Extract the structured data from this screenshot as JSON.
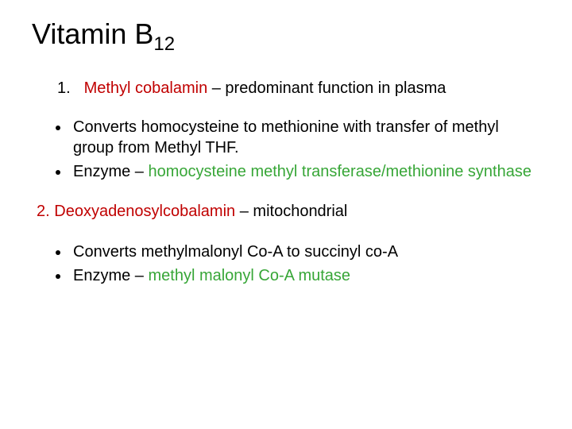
{
  "colors": {
    "red": "#c00000",
    "green": "#37a637",
    "black": "#000000",
    "background": "#ffffff"
  },
  "typography": {
    "title_fontsize": 36,
    "body_fontsize": 20,
    "font_family": "Comic Sans MS"
  },
  "title": {
    "main": "Vitamin B",
    "sub": "12"
  },
  "item1": {
    "marker": "1.",
    "name": "Methyl cobalamin",
    "desc": " – predominant function in plasma"
  },
  "bullets1": {
    "b1": "Converts homocysteine to methionine with transfer of methyl group from Methyl THF.",
    "b2_prefix": "Enzyme – ",
    "b2_green": "homocysteine methyl transferase/methionine synthase"
  },
  "item2": {
    "marker": "2.  ",
    "name": "Deoxyadenosylcobalamin",
    "desc": " – mitochondrial"
  },
  "bullets2": {
    "b1": "Converts methylmalonyl Co-A to succinyl co-A",
    "b2_prefix": "Enzyme – ",
    "b2_green": "methyl malonyl Co-A mutase"
  }
}
